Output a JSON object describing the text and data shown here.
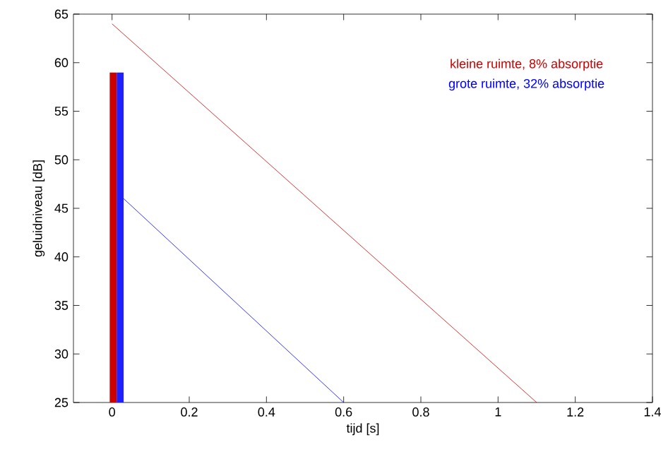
{
  "chart_data": {
    "type": "line",
    "xlabel": "tijd  [s]",
    "ylabel": "geluidniveau  [dB]",
    "xlim": [
      -0.1,
      1.4
    ],
    "ylim": [
      25,
      65
    ],
    "xticks": [
      0,
      0.2,
      0.4,
      0.6,
      0.8,
      1,
      1.2,
      1.4
    ],
    "yticks": [
      25,
      30,
      35,
      40,
      45,
      50,
      55,
      60,
      65
    ],
    "legend": "top right",
    "series": [
      {
        "type": "bar",
        "color": "#cc0000",
        "x": [
          0.003
        ],
        "values": [
          59
        ]
      },
      {
        "type": "bar",
        "color": "#2020ff",
        "x": [
          0.021
        ],
        "values": [
          59
        ]
      },
      {
        "name": "kleine ruimte, 8% absorptie",
        "color": "#cc0000",
        "x": [
          0,
          1.1
        ],
        "values": [
          64,
          25
        ]
      },
      {
        "name": "grote ruimte, 32% absorptie",
        "color": "#0000ff",
        "x": [
          0.03,
          0.6
        ],
        "values": [
          46,
          25
        ]
      }
    ]
  }
}
